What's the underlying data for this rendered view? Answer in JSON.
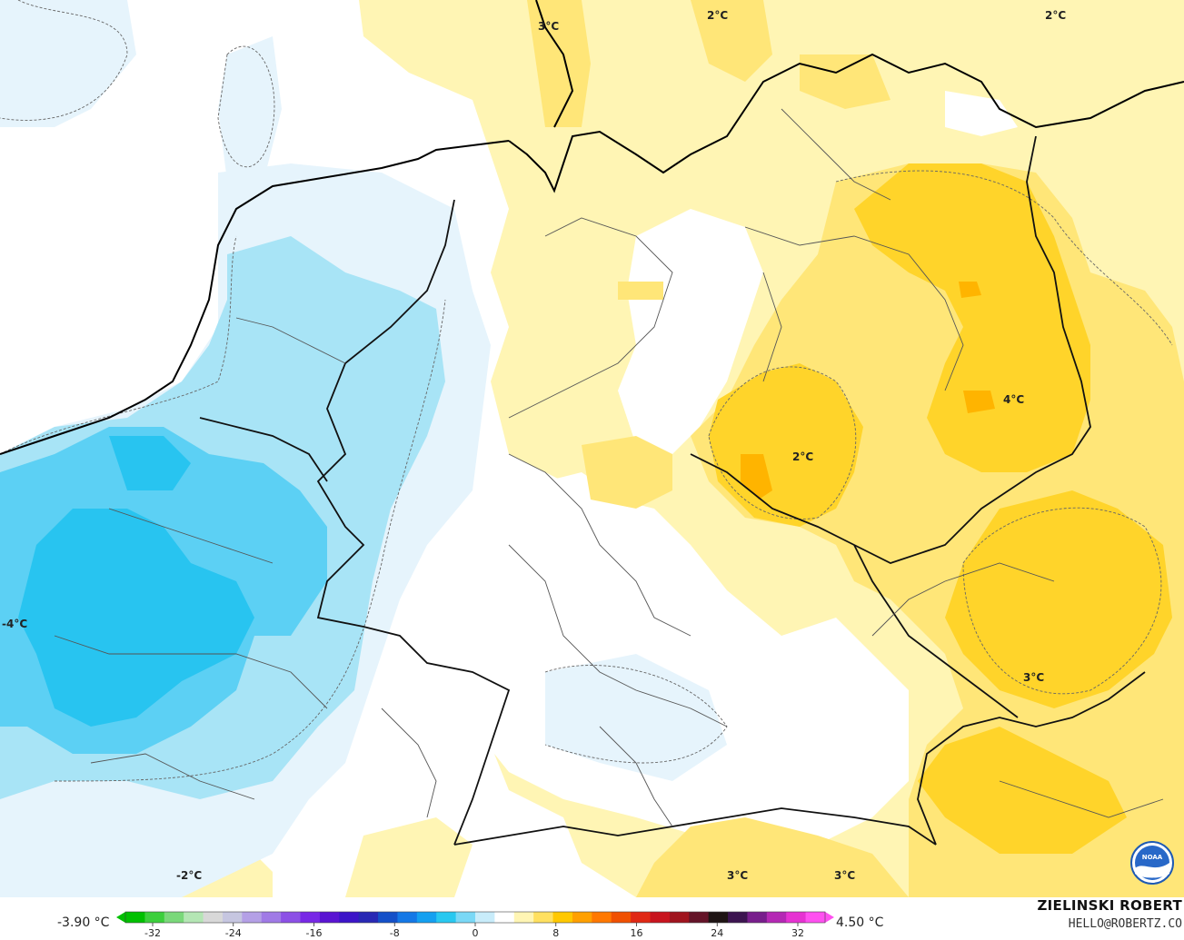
{
  "map": {
    "labels": [
      {
        "id": "l1",
        "text": "3°C"
      },
      {
        "id": "l2",
        "text": "2°C"
      },
      {
        "id": "l3",
        "text": "2°C"
      },
      {
        "id": "l4",
        "text": "4°C"
      },
      {
        "id": "l5",
        "text": "2°C"
      },
      {
        "id": "l6",
        "text": "-4°C"
      },
      {
        "id": "l7",
        "text": "3°C"
      },
      {
        "id": "l8",
        "text": "-2°C"
      },
      {
        "id": "l9",
        "text": "3°C"
      },
      {
        "id": "l10",
        "text": "3°C"
      }
    ]
  },
  "colorbar": {
    "min_value": "-3.90 °C",
    "max_value": "4.50 °C",
    "ticks": [
      "-32",
      "-24",
      "-16",
      "-8",
      "0",
      "8",
      "16",
      "24",
      "32"
    ],
    "colors": [
      "#00c000",
      "#3ccf3c",
      "#7ad87a",
      "#b4e6b4",
      "#d8d8d8",
      "#c6c6e0",
      "#b4a0e6",
      "#a07ae6",
      "#8c50e6",
      "#7828e6",
      "#5a14d2",
      "#3c14c8",
      "#2828b4",
      "#1450c8",
      "#1478e6",
      "#14a0f0",
      "#28c8f0",
      "#7ad8f6",
      "#c8ecfa",
      "#ffffff",
      "#fff5b4",
      "#ffe060",
      "#ffc800",
      "#ffa000",
      "#ff7800",
      "#f05000",
      "#e02814",
      "#c8141e",
      "#a0141e",
      "#641428",
      "#1e1414",
      "#3c1450",
      "#781e8c",
      "#b428b4",
      "#e632d2",
      "#ff50f0"
    ]
  },
  "credit": {
    "name": "ZIELINSKI ROBERT",
    "email": "HELLO@ROBERTZ.CO"
  },
  "logo": {
    "icon": "noaa-logo-icon",
    "text": "NOAA"
  }
}
